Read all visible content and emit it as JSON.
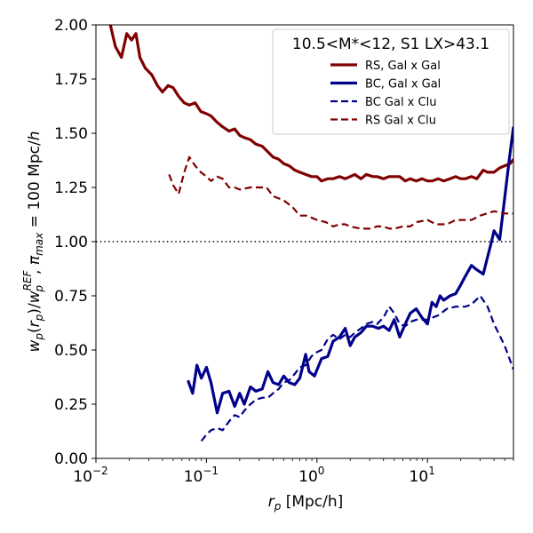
{
  "chart_data": {
    "type": "line",
    "title": "",
    "xlabel": "r_p [Mpc/h]",
    "ylabel": "w_p(r_p)/w_p^REF , π_max = 100 Mpc/h",
    "xscale": "log",
    "xlim": [
      0.01,
      60
    ],
    "ylim": [
      0.0,
      2.0
    ],
    "x_ticks": [
      {
        "value": 0.01,
        "base": "10",
        "exp": "−2"
      },
      {
        "value": 0.1,
        "base": "10",
        "exp": "−1"
      },
      {
        "value": 1,
        "base": "10",
        "exp": "0"
      },
      {
        "value": 10,
        "base": "10",
        "exp": "1"
      }
    ],
    "y_ticks": [
      {
        "value": 0.0,
        "label": "0.00"
      },
      {
        "value": 0.25,
        "label": "0.25"
      },
      {
        "value": 0.5,
        "label": "0.50"
      },
      {
        "value": 0.75,
        "label": "0.75"
      },
      {
        "value": 1.0,
        "label": "1.00"
      },
      {
        "value": 1.25,
        "label": "1.25"
      },
      {
        "value": 1.5,
        "label": "1.50"
      },
      {
        "value": 1.75,
        "label": "1.75"
      },
      {
        "value": 2.0,
        "label": "2.00"
      }
    ],
    "reference_line": {
      "y": 1.0,
      "style": "dotted",
      "color": "#000000"
    },
    "legend": {
      "title": "10.5<M*<12, S1 LX>43.1",
      "location": "upper right"
    },
    "series": [
      {
        "name": "RS, Gal x Gal",
        "color": "#800000",
        "style": "solid",
        "x": [
          0.0135,
          0.015,
          0.017,
          0.019,
          0.021,
          0.023,
          0.025,
          0.028,
          0.032,
          0.036,
          0.04,
          0.045,
          0.05,
          0.056,
          0.063,
          0.07,
          0.079,
          0.089,
          0.1,
          0.11,
          0.125,
          0.14,
          0.16,
          0.18,
          0.2,
          0.22,
          0.25,
          0.28,
          0.32,
          0.35,
          0.4,
          0.45,
          0.5,
          0.56,
          0.63,
          0.7,
          0.79,
          0.89,
          1.0,
          1.1,
          1.25,
          1.4,
          1.6,
          1.8,
          2.0,
          2.2,
          2.5,
          2.8,
          3.2,
          3.5,
          4.0,
          4.5,
          5.0,
          5.6,
          6.3,
          7.0,
          7.9,
          8.9,
          10,
          11,
          12.5,
          14,
          16,
          18,
          20,
          22,
          25,
          28,
          32,
          35,
          40,
          45,
          50,
          56,
          60
        ],
        "values": [
          2.0,
          1.9,
          1.85,
          1.96,
          1.93,
          1.96,
          1.85,
          1.8,
          1.77,
          1.72,
          1.69,
          1.72,
          1.71,
          1.67,
          1.64,
          1.63,
          1.64,
          1.6,
          1.59,
          1.58,
          1.55,
          1.53,
          1.51,
          1.52,
          1.49,
          1.48,
          1.47,
          1.45,
          1.44,
          1.42,
          1.39,
          1.38,
          1.36,
          1.35,
          1.33,
          1.32,
          1.31,
          1.3,
          1.3,
          1.28,
          1.29,
          1.29,
          1.3,
          1.29,
          1.3,
          1.31,
          1.29,
          1.31,
          1.3,
          1.3,
          1.29,
          1.3,
          1.3,
          1.3,
          1.28,
          1.29,
          1.28,
          1.29,
          1.28,
          1.28,
          1.29,
          1.28,
          1.29,
          1.3,
          1.29,
          1.29,
          1.3,
          1.29,
          1.33,
          1.32,
          1.32,
          1.34,
          1.35,
          1.36,
          1.38
        ]
      },
      {
        "name": "BC, Gal x Gal",
        "color": "#00008B",
        "style": "solid",
        "x": [
          0.068,
          0.075,
          0.082,
          0.09,
          0.1,
          0.11,
          0.125,
          0.14,
          0.16,
          0.18,
          0.2,
          0.22,
          0.25,
          0.28,
          0.32,
          0.36,
          0.4,
          0.45,
          0.5,
          0.56,
          0.63,
          0.7,
          0.79,
          0.85,
          0.95,
          1.1,
          1.25,
          1.4,
          1.6,
          1.8,
          2.0,
          2.2,
          2.5,
          2.8,
          3.2,
          3.6,
          4.0,
          4.5,
          5.0,
          5.6,
          6.3,
          7.0,
          7.9,
          8.9,
          10,
          11,
          12,
          13,
          14,
          16,
          18,
          20,
          22,
          25,
          28,
          32,
          35,
          38,
          40,
          45,
          50,
          55,
          60
        ],
        "values": [
          0.36,
          0.3,
          0.43,
          0.37,
          0.42,
          0.35,
          0.21,
          0.3,
          0.31,
          0.24,
          0.3,
          0.25,
          0.33,
          0.31,
          0.32,
          0.4,
          0.35,
          0.34,
          0.38,
          0.35,
          0.34,
          0.37,
          0.48,
          0.4,
          0.38,
          0.46,
          0.47,
          0.54,
          0.56,
          0.6,
          0.52,
          0.56,
          0.58,
          0.61,
          0.61,
          0.6,
          0.61,
          0.59,
          0.64,
          0.56,
          0.62,
          0.67,
          0.69,
          0.65,
          0.62,
          0.72,
          0.7,
          0.75,
          0.73,
          0.75,
          0.76,
          0.8,
          0.84,
          0.89,
          0.87,
          0.85,
          0.93,
          1.0,
          1.05,
          1.01,
          1.2,
          1.38,
          1.53
        ]
      },
      {
        "name": "BC Gal x Clu",
        "color": "#00008B",
        "style": "dashed",
        "x": [
          0.09,
          0.1,
          0.11,
          0.125,
          0.14,
          0.16,
          0.18,
          0.2,
          0.22,
          0.25,
          0.28,
          0.32,
          0.36,
          0.4,
          0.45,
          0.5,
          0.56,
          0.63,
          0.7,
          0.79,
          0.89,
          1.0,
          1.1,
          1.25,
          1.4,
          1.6,
          1.8,
          2.0,
          2.2,
          2.5,
          2.8,
          3.2,
          3.5,
          4.0,
          4.5,
          5.0,
          5.6,
          6.3,
          7.0,
          8.0,
          10,
          12.5,
          15,
          18,
          22,
          25,
          30,
          35,
          40,
          50,
          60
        ],
        "values": [
          0.08,
          0.11,
          0.13,
          0.14,
          0.13,
          0.17,
          0.2,
          0.19,
          0.22,
          0.25,
          0.27,
          0.28,
          0.28,
          0.3,
          0.32,
          0.35,
          0.36,
          0.39,
          0.42,
          0.43,
          0.47,
          0.49,
          0.5,
          0.55,
          0.57,
          0.55,
          0.57,
          0.56,
          0.58,
          0.6,
          0.62,
          0.63,
          0.62,
          0.65,
          0.7,
          0.67,
          0.62,
          0.61,
          0.63,
          0.64,
          0.64,
          0.66,
          0.69,
          0.7,
          0.7,
          0.71,
          0.75,
          0.7,
          0.62,
          0.52,
          0.41
        ]
      },
      {
        "name": "RS Gal x Clu",
        "color": "#800000",
        "style": "dashed",
        "x": [
          0.046,
          0.05,
          0.056,
          0.063,
          0.07,
          0.079,
          0.089,
          0.1,
          0.11,
          0.125,
          0.14,
          0.16,
          0.18,
          0.2,
          0.25,
          0.3,
          0.35,
          0.4,
          0.5,
          0.6,
          0.7,
          0.8,
          0.9,
          1.0,
          1.2,
          1.4,
          1.6,
          1.8,
          2.0,
          2.5,
          3.0,
          3.5,
          4.0,
          4.5,
          5.0,
          6.0,
          7.0,
          8.0,
          10,
          12,
          15,
          18,
          20,
          25,
          30,
          40,
          50,
          60
        ],
        "values": [
          1.31,
          1.26,
          1.22,
          1.32,
          1.39,
          1.35,
          1.32,
          1.3,
          1.28,
          1.3,
          1.29,
          1.25,
          1.25,
          1.24,
          1.25,
          1.25,
          1.25,
          1.21,
          1.19,
          1.16,
          1.12,
          1.12,
          1.11,
          1.1,
          1.09,
          1.07,
          1.08,
          1.08,
          1.07,
          1.06,
          1.06,
          1.07,
          1.07,
          1.06,
          1.06,
          1.07,
          1.07,
          1.09,
          1.1,
          1.08,
          1.08,
          1.1,
          1.1,
          1.1,
          1.12,
          1.14,
          1.13,
          1.13
        ]
      }
    ]
  }
}
